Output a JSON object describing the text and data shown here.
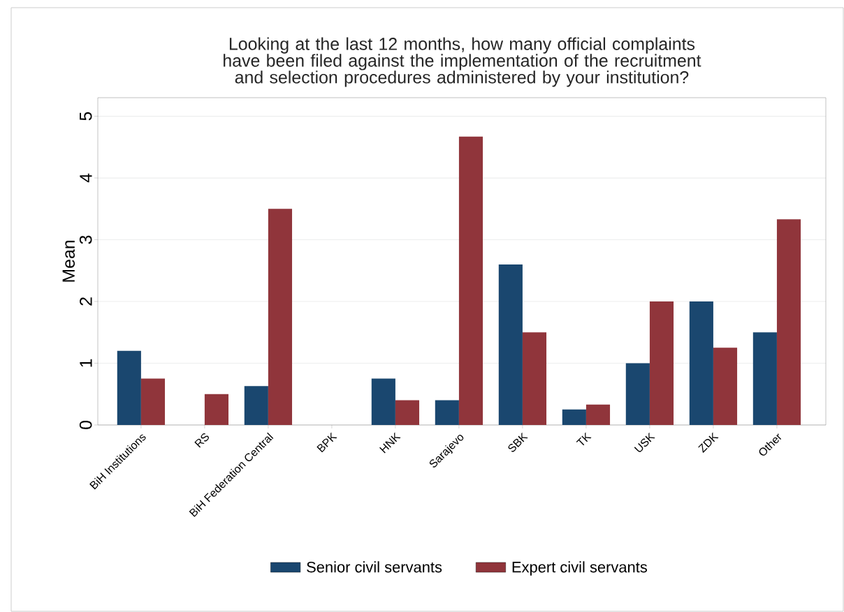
{
  "chart_data": {
    "type": "bar",
    "title": "Looking at the last 12 months, how many official complaints have been filed against the implementation of the recruitment and selection procedures administered by your institution?",
    "ylabel": "Mean",
    "categories": [
      "BiH Institutions",
      "RS",
      "BiH Federation Central",
      "BPK",
      "HNK",
      "Sarajevo",
      "SBK",
      "TK",
      "USK",
      "ZDK",
      "Other"
    ],
    "series": [
      {
        "name": "Senior civil servants",
        "color": "#1a476f",
        "values": [
          1.2,
          null,
          0.63,
          null,
          0.75,
          0.4,
          2.6,
          0.25,
          1.0,
          2.0,
          1.5
        ]
      },
      {
        "name": "Expert civil servants",
        "color": "#90353b",
        "values": [
          0.75,
          0.5,
          3.5,
          null,
          0.4,
          4.67,
          1.5,
          0.33,
          2.0,
          1.25,
          3.33
        ]
      }
    ],
    "ylim": [
      0,
      5.3
    ],
    "yticks": [
      0,
      1,
      2,
      3,
      4,
      5
    ],
    "grid": "y",
    "legend": "bottom"
  }
}
